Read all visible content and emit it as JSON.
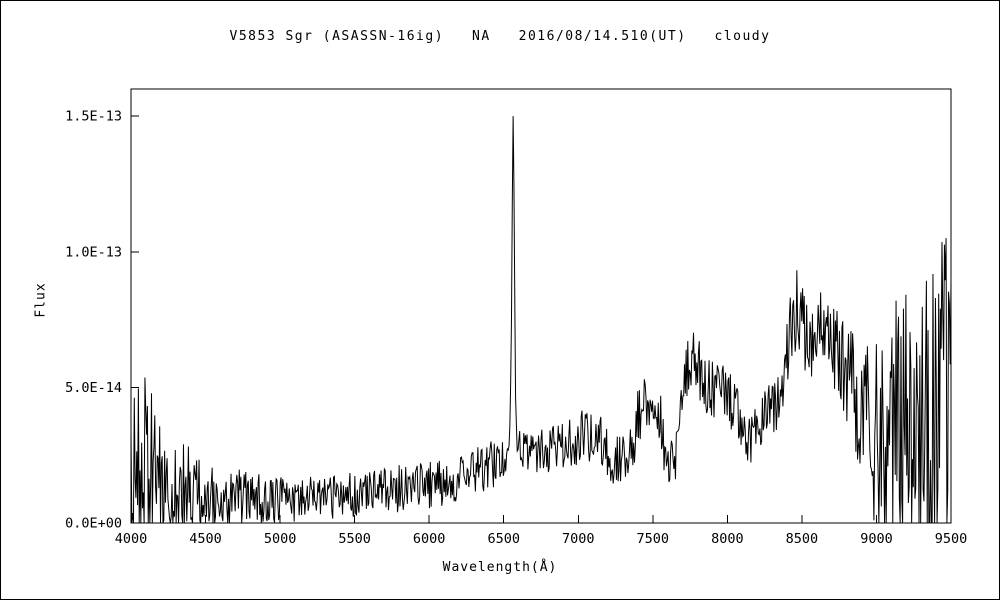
{
  "chart_data": {
    "type": "line",
    "title": "V5853 Sgr (ASASSN-16ig)   NA   2016/08/14.510(UT)   cloudy",
    "xlabel": "Wavelength(Å)",
    "ylabel": "Flux",
    "xlim": [
      4000,
      9500
    ],
    "ylim": [
      0,
      1.6e-13
    ],
    "grid": false,
    "legend": false,
    "line_color": "#000000",
    "background": "#ffffff",
    "xticks": [
      {
        "value": 4000,
        "label": "4000"
      },
      {
        "value": 4500,
        "label": "4500"
      },
      {
        "value": 5000,
        "label": "5000"
      },
      {
        "value": 5500,
        "label": "5500"
      },
      {
        "value": 6000,
        "label": "6000"
      },
      {
        "value": 6500,
        "label": "6500"
      },
      {
        "value": 7000,
        "label": "7000"
      },
      {
        "value": 7500,
        "label": "7500"
      },
      {
        "value": 8000,
        "label": "8000"
      },
      {
        "value": 8500,
        "label": "8500"
      },
      {
        "value": 9000,
        "label": "9000"
      },
      {
        "value": 9500,
        "label": "9500"
      }
    ],
    "yticks": [
      {
        "value": 0,
        "label": "0.0E+00"
      },
      {
        "value": 5e-14,
        "label": "5.0E-14"
      },
      {
        "value": 1e-13,
        "label": "1.0E-13"
      },
      {
        "value": 1.5e-13,
        "label": "1.5E-13"
      }
    ],
    "emission_peak": {
      "wavelength": 6563,
      "flux": 1.5e-13
    },
    "flux_scale": 1e-14,
    "sample_step_angstrom": 5.5,
    "noise_seed": 987654321,
    "anchors_format": [
      "wavelength_angstrom",
      "continuum_flux_1e-14",
      "noise_amplitude_1e-14"
    ],
    "anchors": [
      [
        4000,
        2.0,
        2.8
      ],
      [
        4050,
        1.8,
        3.2
      ],
      [
        4100,
        1.8,
        3.8
      ],
      [
        4150,
        1.7,
        3.4
      ],
      [
        4200,
        1.6,
        2.8
      ],
      [
        4300,
        1.4,
        2.0
      ],
      [
        4400,
        1.2,
        1.6
      ],
      [
        4500,
        1.1,
        1.3
      ],
      [
        4600,
        1.0,
        1.2
      ],
      [
        4700,
        1.0,
        1.1
      ],
      [
        4800,
        0.9,
        1.0
      ],
      [
        4900,
        0.85,
        0.9
      ],
      [
        5000,
        0.85,
        0.85
      ],
      [
        5100,
        0.9,
        0.85
      ],
      [
        5200,
        0.9,
        0.85
      ],
      [
        5300,
        0.95,
        0.85
      ],
      [
        5400,
        1.0,
        0.85
      ],
      [
        5500,
        1.05,
        0.85
      ],
      [
        5600,
        1.1,
        0.85
      ],
      [
        5700,
        1.15,
        0.85
      ],
      [
        5800,
        1.25,
        0.9
      ],
      [
        5900,
        1.3,
        0.9
      ],
      [
        6000,
        1.4,
        0.9
      ],
      [
        6100,
        1.55,
        0.9
      ],
      [
        6200,
        1.7,
        0.9
      ],
      [
        6300,
        1.9,
        0.95
      ],
      [
        6400,
        2.1,
        0.95
      ],
      [
        6480,
        2.3,
        0.8
      ],
      [
        6520,
        2.5,
        0.6
      ],
      [
        6540,
        3.0,
        0.5
      ],
      [
        6550,
        6.0,
        0.4
      ],
      [
        6556,
        11.0,
        0.3
      ],
      [
        6563,
        15.0,
        0.2
      ],
      [
        6570,
        11.5,
        0.3
      ],
      [
        6578,
        5.0,
        0.4
      ],
      [
        6590,
        3.0,
        0.5
      ],
      [
        6620,
        2.7,
        0.7
      ],
      [
        6700,
        2.6,
        0.8
      ],
      [
        6800,
        2.7,
        0.85
      ],
      [
        6900,
        2.9,
        0.9
      ],
      [
        7000,
        3.1,
        1.0
      ],
      [
        7100,
        3.3,
        1.0
      ],
      [
        7160,
        3.0,
        1.0
      ],
      [
        7250,
        2.3,
        1.0
      ],
      [
        7350,
        2.6,
        1.1
      ],
      [
        7420,
        4.2,
        1.2
      ],
      [
        7480,
        4.6,
        1.2
      ],
      [
        7550,
        4.0,
        1.1
      ],
      [
        7600,
        1.8,
        0.9
      ],
      [
        7650,
        2.5,
        1.0
      ],
      [
        7700,
        4.5,
        1.1
      ],
      [
        7750,
        6.3,
        1.2
      ],
      [
        7800,
        5.6,
        1.2
      ],
      [
        7900,
        4.9,
        1.1
      ],
      [
        8000,
        4.8,
        1.1
      ],
      [
        8080,
        3.8,
        1.0
      ],
      [
        8150,
        2.9,
        0.9
      ],
      [
        8250,
        4.0,
        1.0
      ],
      [
        8350,
        4.4,
        1.1
      ],
      [
        8420,
        7.0,
        1.5
      ],
      [
        8470,
        8.0,
        1.4
      ],
      [
        8520,
        7.0,
        1.4
      ],
      [
        8570,
        6.6,
        1.4
      ],
      [
        8620,
        7.6,
        1.5
      ],
      [
        8680,
        7.2,
        1.6
      ],
      [
        8750,
        6.2,
        1.8
      ],
      [
        8820,
        5.4,
        2.2
      ],
      [
        8900,
        4.6,
        3.0
      ],
      [
        8960,
        3.2,
        3.4
      ],
      [
        9020,
        3.0,
        3.8
      ],
      [
        9080,
        4.5,
        5.0
      ],
      [
        9150,
        3.6,
        4.6
      ],
      [
        9220,
        3.8,
        5.0
      ],
      [
        9300,
        4.0,
        5.5
      ],
      [
        9380,
        4.2,
        6.0
      ],
      [
        9450,
        4.5,
        6.5
      ],
      [
        9500,
        4.2,
        6.0
      ]
    ]
  }
}
